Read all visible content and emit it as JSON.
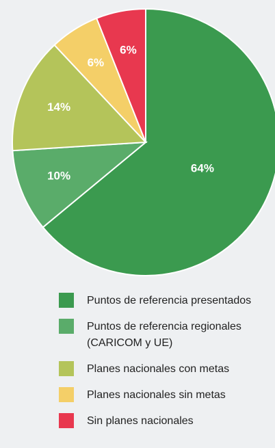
{
  "chart_data": {
    "type": "pie",
    "categories": [
      "Puntos de referencia presentados",
      "Puntos de referencia regionales (CARICOM y UE)",
      "Planes nacionales con metas",
      "Planes nacionales sin metas",
      "Sin planes nacionales"
    ],
    "values": [
      64,
      10,
      14,
      6,
      6
    ],
    "value_labels": [
      "64%",
      "10%",
      "14%",
      "6%",
      "6%"
    ],
    "colors": [
      "#3b9a4f",
      "#5aac6a",
      "#b4c45a",
      "#f4cf68",
      "#e8384f"
    ]
  }
}
